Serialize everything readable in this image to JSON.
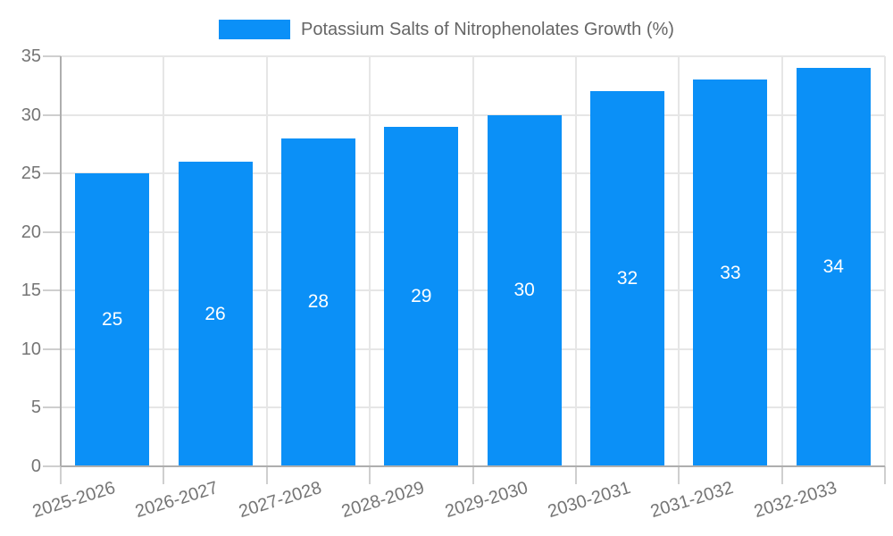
{
  "legend": {
    "label": "Potassium Salts of Nitrophenolates Growth (%)"
  },
  "colors": {
    "bar": "#0b90f7",
    "grid": "#e6e6e6",
    "axis": "#aeaeae",
    "tick": "#cfcfcf",
    "axis_text": "#757575",
    "legend_text": "#666666",
    "value_text": "#ffffff",
    "background": "#ffffff"
  },
  "chart_data": {
    "type": "bar",
    "title": "",
    "categories": [
      "2025-2026",
      "2026-2027",
      "2027-2028",
      "2028-2029",
      "2029-2030",
      "2030-2031",
      "2031-2032",
      "2032-2033"
    ],
    "series": [
      {
        "name": "Potassium Salts of Nitrophenolates Growth (%)",
        "values": [
          25,
          26,
          28,
          29,
          30,
          32,
          33,
          34
        ]
      }
    ],
    "value_labels": [
      "25",
      "26",
      "28",
      "29",
      "30",
      "32",
      "33",
      "34"
    ],
    "xlabel": "",
    "ylabel": "",
    "ylim": [
      0,
      35
    ],
    "yticks": [
      0,
      5,
      10,
      15,
      20,
      25,
      30,
      35
    ],
    "grid": true,
    "legend_position": "top",
    "x_tick_rotation_deg": -17
  }
}
